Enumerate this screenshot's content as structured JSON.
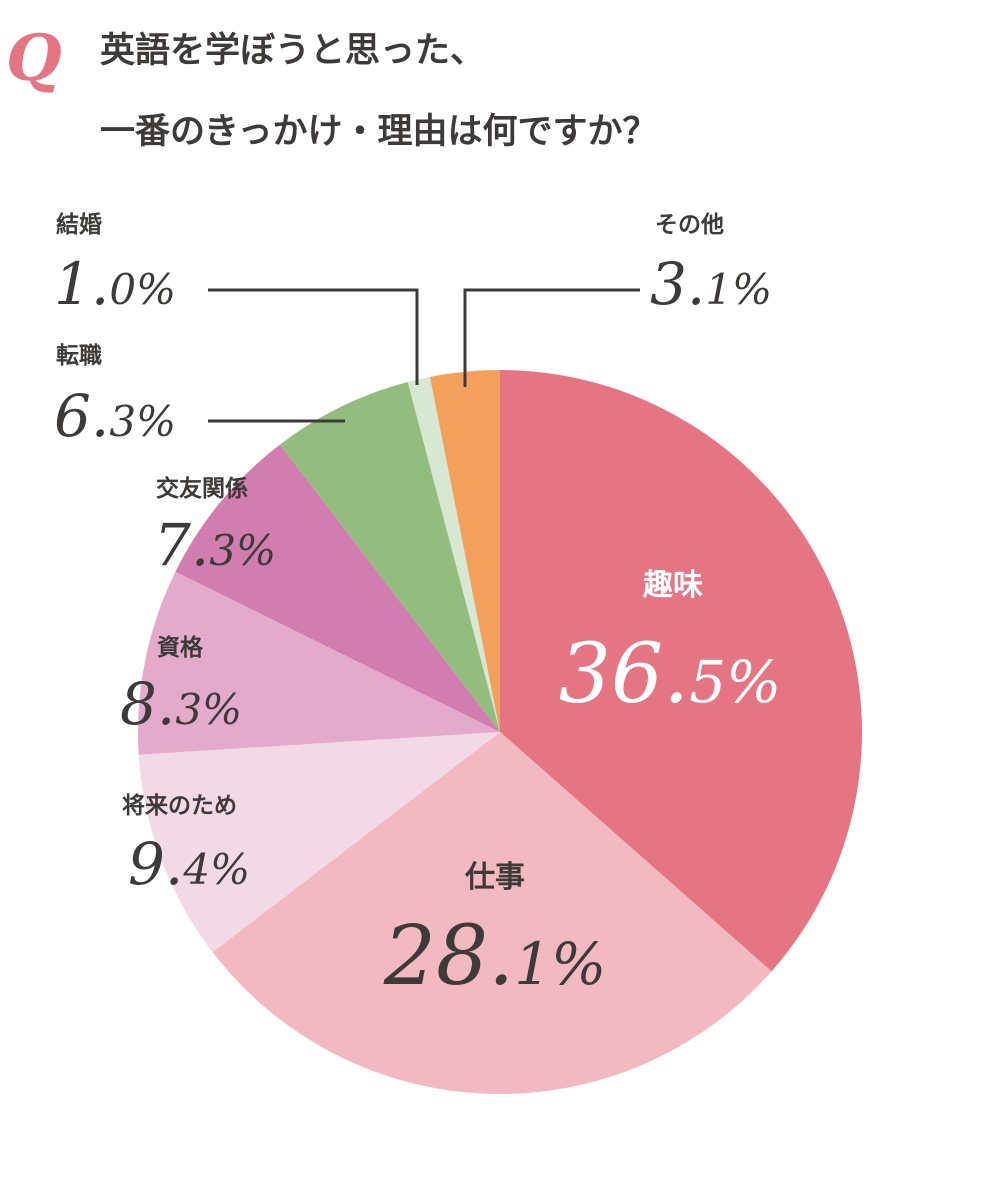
{
  "question": {
    "mark": "Q",
    "line1": "英語を学ぼうと思った、",
    "line2": "一番のきっかけ・理由は何ですか？"
  },
  "chart_data": {
    "type": "pie",
    "title": "英語を学ぼうと思った、一番のきっかけ・理由は何ですか？",
    "unit": "%",
    "start_angle_deg": 0,
    "direction": "clockwise",
    "slices": [
      {
        "label": "趣味",
        "value": 36.5,
        "display": "36.5%",
        "color": "#e57582"
      },
      {
        "label": "仕事",
        "value": 28.1,
        "display": "28.1%",
        "color": "#f2bac0"
      },
      {
        "label": "将来のため",
        "value": 9.4,
        "display": "9.4%",
        "color": "#f3d9e6"
      },
      {
        "label": "資格",
        "value": 8.3,
        "display": "8.3%",
        "color": "#e3aacb"
      },
      {
        "label": "交友関係",
        "value": 7.3,
        "display": "7.3%",
        "color": "#d27daf"
      },
      {
        "label": "転職",
        "value": 6.3,
        "display": "6.3%",
        "color": "#92bd7e"
      },
      {
        "label": "結婚",
        "value": 1.0,
        "display": "1.0%",
        "color": "#d7e8d2"
      },
      {
        "label": "その他",
        "value": 3.1,
        "display": "3.1%",
        "color": "#f2a05c"
      }
    ],
    "colors": {
      "accent": "#e57582",
      "text": "#3e3a39",
      "inside_text": "#ffffff"
    }
  }
}
